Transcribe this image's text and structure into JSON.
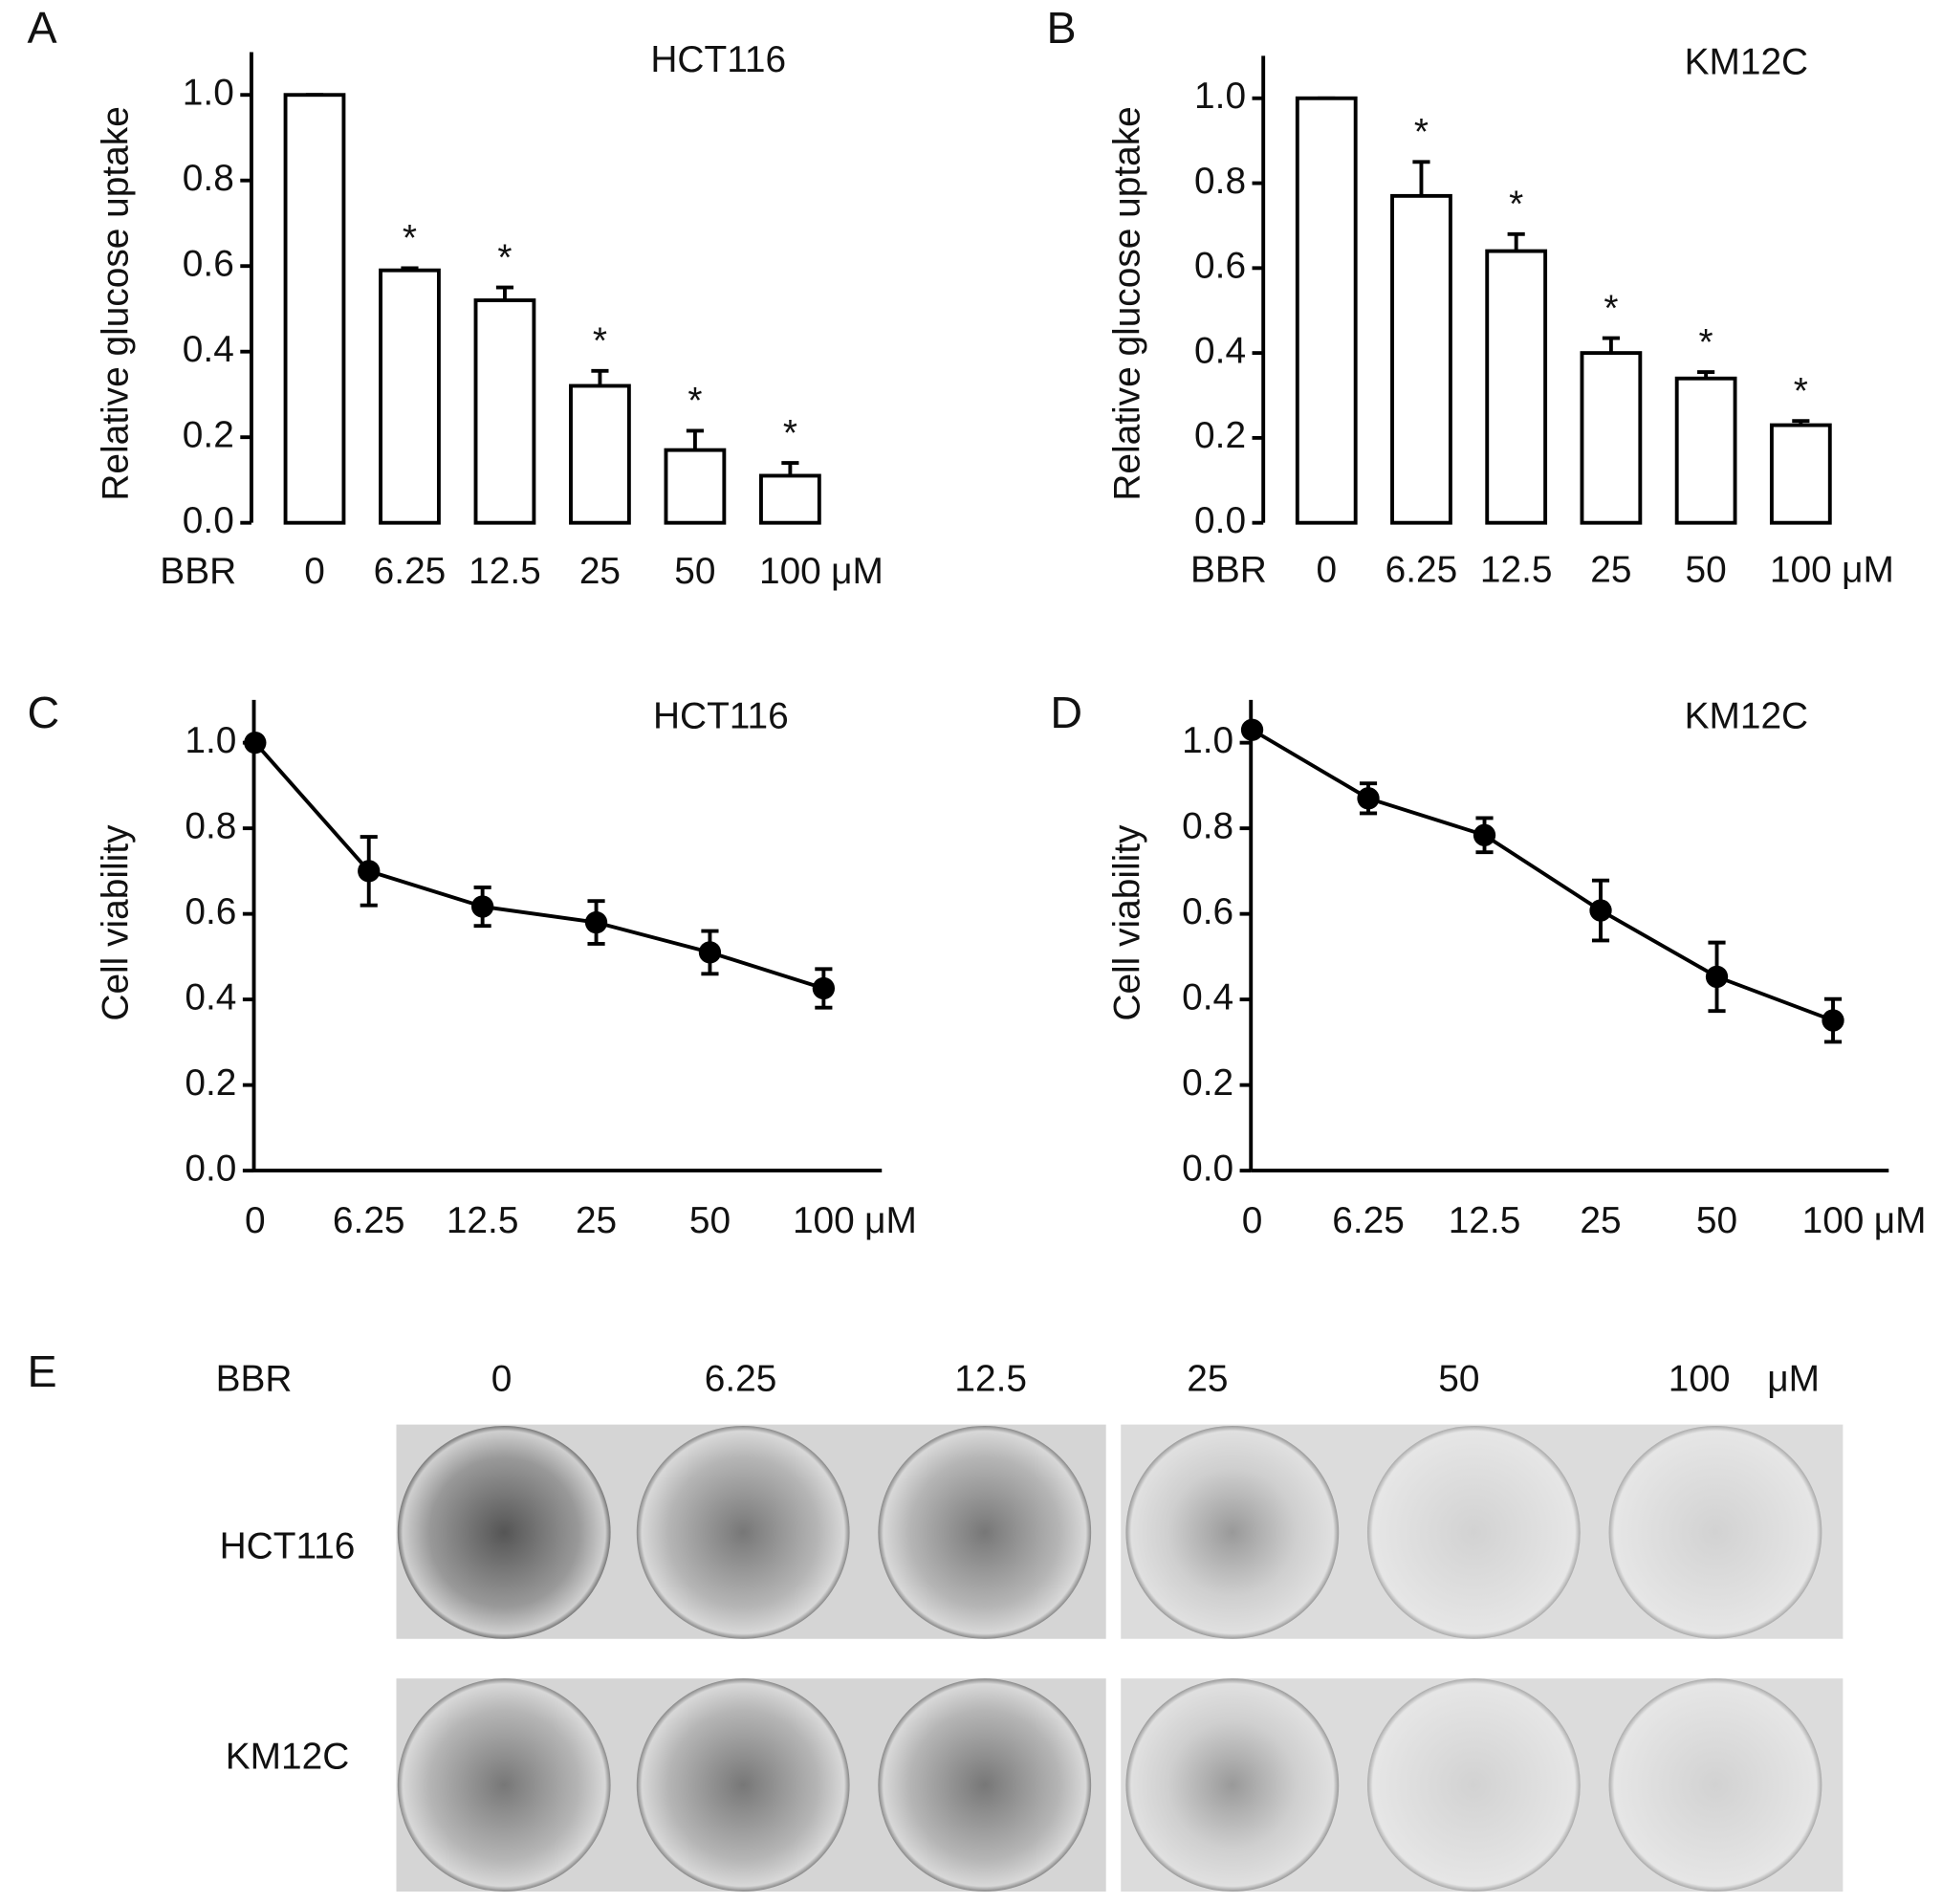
{
  "chart_data": [
    {
      "type": "bar",
      "panel": "A",
      "title": "HCT116",
      "y_label": "Relative glucose uptake",
      "x_prefix": "BBR",
      "x_unit": "μM",
      "categories": [
        "0",
        "6.25",
        "12.5",
        "25",
        "50",
        "100"
      ],
      "values": [
        1.0,
        0.59,
        0.52,
        0.32,
        0.17,
        0.11
      ],
      "errors": [
        0,
        0.005,
        0.03,
        0.035,
        0.045,
        0.03
      ],
      "annotations": [
        null,
        "*",
        "*",
        "*",
        "*",
        "*"
      ],
      "color": "#ffffff",
      "ylim": [
        0,
        1.1
      ],
      "yticks": [
        {
          "value": 0,
          "label": "0.0"
        },
        0.2,
        0.4,
        0.6,
        0.8,
        {
          "value": 1,
          "label": "1.0"
        }
      ]
    },
    {
      "type": "bar",
      "panel": "B",
      "title": "KM12C",
      "y_label": "Relative glucose uptake",
      "x_prefix": "BBR",
      "x_unit": "μM",
      "categories": [
        "0",
        "6.25",
        "12.5",
        "25",
        "50",
        "100"
      ],
      "values": [
        1.0,
        0.77,
        0.64,
        0.4,
        0.34,
        0.23
      ],
      "errors": [
        0,
        0.08,
        0.04,
        0.035,
        0.015,
        0.01
      ],
      "annotations": [
        null,
        "*",
        "*",
        "*",
        "*",
        "*"
      ],
      "color": "#ffffff",
      "ylim": [
        0,
        1.1
      ],
      "yticks": [
        {
          "value": 0,
          "label": "0.0"
        },
        0.2,
        0.4,
        0.6,
        0.8,
        {
          "value": 1,
          "label": "1.0"
        }
      ]
    },
    {
      "type": "line",
      "panel": "C",
      "title": "HCT116",
      "y_label": "Cell viability",
      "x_unit": "μM",
      "categories": [
        "0",
        "6.25",
        "12.5",
        "25",
        "50",
        "100"
      ],
      "values": [
        1.0,
        0.7,
        0.617,
        0.58,
        0.51,
        0.426
      ],
      "errors": [
        0,
        0.08,
        0.045,
        0.05,
        0.05,
        0.045
      ],
      "color": "#000000",
      "ylim": [
        0,
        1.1
      ],
      "yticks": [
        {
          "value": 0,
          "label": "0.0"
        },
        0.2,
        0.4,
        0.6,
        0.8,
        {
          "value": 1,
          "label": "1.0"
        }
      ]
    },
    {
      "type": "line",
      "panel": "D",
      "title": "KM12C",
      "y_label": "Cell viability",
      "x_unit": "μM",
      "categories": [
        "0",
        "6.25",
        "12.5",
        "25",
        "50",
        "100"
      ],
      "values": [
        1.03,
        0.87,
        0.784,
        0.608,
        0.453,
        0.351
      ],
      "errors": [
        0,
        0.035,
        0.04,
        0.07,
        0.08,
        0.05
      ],
      "color": "#000000",
      "ylim": [
        0,
        1.1
      ],
      "yticks": [
        {
          "value": 0,
          "label": "0.0"
        },
        0.2,
        0.4,
        0.6,
        0.8,
        {
          "value": 1,
          "label": "1.0"
        }
      ]
    }
  ],
  "photo_panel": {
    "panel": "E",
    "header": "BBR",
    "columns": [
      "0",
      "6.25",
      "12.5",
      "25",
      "50",
      "100"
    ],
    "unit": "μM",
    "rows": [
      "HCT116",
      "KM12C"
    ]
  }
}
